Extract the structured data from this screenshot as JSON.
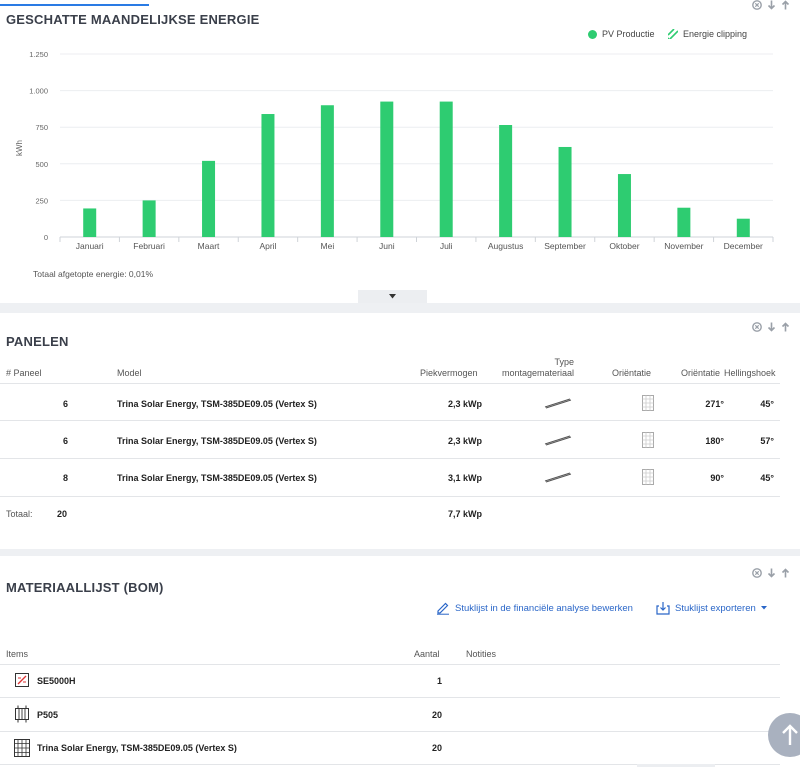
{
  "energy_card": {
    "title": "GESCHATTE MAANDELIJKSE ENERGIE",
    "legend": [
      {
        "label": "PV Productie",
        "color": "#2ecc71",
        "icon": "filled-circle-icon"
      },
      {
        "label": "Energie clipping",
        "color": "#2ecc71",
        "icon": "striped-icon"
      }
    ],
    "footnote": "Totaal afgetopte energie: 0,01%"
  },
  "chart_data": {
    "type": "bar",
    "categories": [
      "Januari",
      "Februari",
      "Maart",
      "April",
      "Mei",
      "Juni",
      "Juli",
      "Augustus",
      "September",
      "Oktober",
      "November",
      "December"
    ],
    "series": [
      {
        "name": "PV Productie",
        "color": "#2ecc71",
        "values": [
          195,
          250,
          520,
          840,
          900,
          925,
          925,
          765,
          615,
          430,
          200,
          125
        ]
      }
    ],
    "ylabel": "kWh",
    "ylim": [
      0,
      1250
    ],
    "yticks": [
      0,
      250,
      500,
      750,
      1000,
      1250
    ],
    "ytick_labels": [
      "0",
      "250",
      "500",
      "750",
      "1.000",
      "1.250"
    ],
    "grid": true,
    "legend_position": "top-right"
  },
  "panels_card": {
    "title": "PANELEN",
    "headers": {
      "count": "# Paneel",
      "model": "Model",
      "power": "Piekvermogen",
      "mount_1": "Type",
      "mount_2": "montagemateriaal",
      "orientation": "Oriëntatie",
      "orientation_deg": "Oriëntatie",
      "tilt": "Hellingshoek"
    },
    "rows": [
      {
        "count": "6",
        "model": "Trina Solar Energy, TSM-385DE09.05 (Vertex S)",
        "power": "2,3 kWp",
        "orientation_deg": "271°",
        "tilt": "45°"
      },
      {
        "count": "6",
        "model": "Trina Solar Energy, TSM-385DE09.05 (Vertex S)",
        "power": "2,3 kWp",
        "orientation_deg": "180°",
        "tilt": "57°"
      },
      {
        "count": "8",
        "model": "Trina Solar Energy, TSM-385DE09.05 (Vertex S)",
        "power": "3,1 kWp",
        "orientation_deg": "90°",
        "tilt": "45°"
      }
    ],
    "total_label": "Totaal:",
    "total_count": "20",
    "total_power": "7,7 kWp"
  },
  "bom_card": {
    "title": "MATERIAALLIJST (BOM)",
    "edit_link": "Stuklijst in de financiële analyse bewerken",
    "export_link": "Stuklijst exporteren",
    "headers": {
      "items": "Items",
      "qty": "Aantal",
      "notes": "Notities"
    },
    "rows": [
      {
        "name": "SE5000H",
        "qty": "1",
        "icon": "inverter-icon"
      },
      {
        "name": "P505",
        "qty": "20",
        "icon": "optimizer-icon"
      },
      {
        "name": "Trina Solar Energy, TSM-385DE09.05 (Vertex S)",
        "qty": "20",
        "icon": "solar-panel-icon"
      }
    ]
  }
}
